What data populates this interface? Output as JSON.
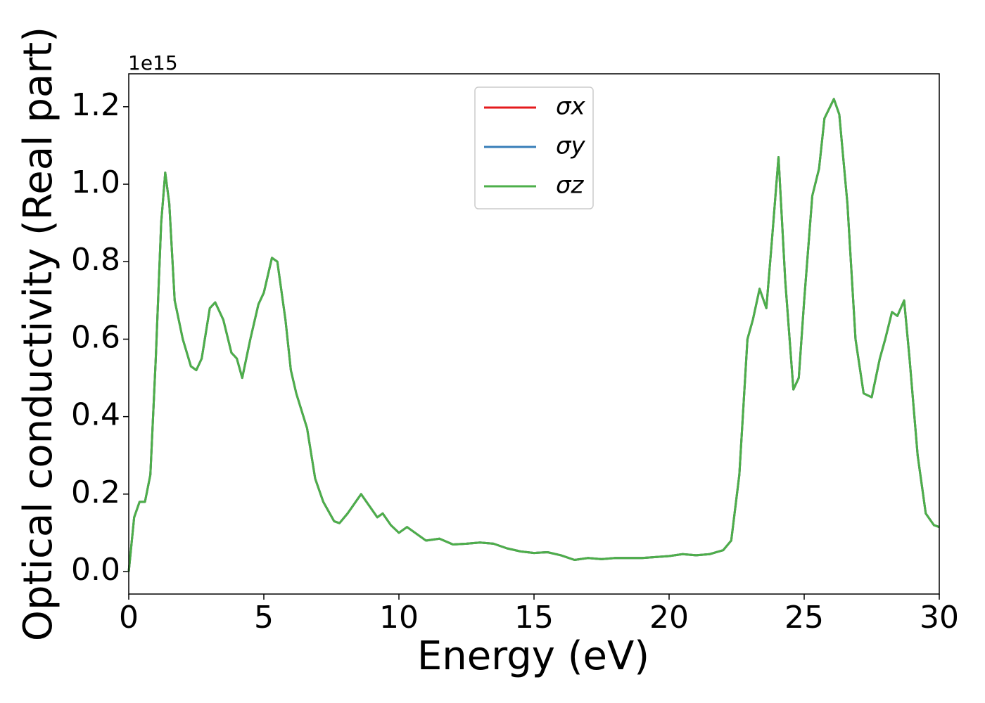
{
  "chart_data": {
    "type": "line",
    "xlabel": "Energy (eV)",
    "ylabel": "Optical conductivity (Real part)",
    "y_offset_label": "1e15",
    "x": [
      0,
      0.2,
      0.4,
      0.6,
      0.8,
      1.0,
      1.2,
      1.35,
      1.5,
      1.7,
      2.0,
      2.3,
      2.5,
      2.7,
      3.0,
      3.2,
      3.5,
      3.8,
      4.0,
      4.2,
      4.5,
      4.8,
      5.0,
      5.3,
      5.5,
      5.8,
      6.0,
      6.2,
      6.6,
      6.9,
      7.2,
      7.6,
      7.8,
      8.1,
      8.3,
      8.6,
      8.9,
      9.2,
      9.4,
      9.7,
      10.0,
      10.3,
      10.6,
      11.0,
      11.5,
      12.0,
      12.5,
      13.0,
      13.5,
      14.0,
      14.5,
      15.0,
      15.5,
      16.0,
      16.5,
      17.0,
      17.5,
      18.0,
      19.0,
      20.0,
      20.5,
      21.0,
      21.5,
      22.0,
      22.3,
      22.6,
      22.9,
      23.1,
      23.35,
      23.6,
      23.8,
      24.05,
      24.3,
      24.6,
      24.8,
      25.0,
      25.3,
      25.55,
      25.75,
      26.1,
      26.3,
      26.6,
      26.9,
      27.2,
      27.5,
      27.8,
      28.0,
      28.25,
      28.45,
      28.7,
      28.9,
      29.2,
      29.5,
      29.8,
      30.0
    ],
    "series": [
      {
        "name": "σx",
        "color": "#e41a1c",
        "values": [
          0.0,
          0.14,
          0.18,
          0.18,
          0.25,
          0.55,
          0.9,
          1.03,
          0.95,
          0.7,
          0.6,
          0.53,
          0.52,
          0.55,
          0.68,
          0.695,
          0.65,
          0.565,
          0.55,
          0.5,
          0.6,
          0.69,
          0.72,
          0.81,
          0.8,
          0.65,
          0.52,
          0.46,
          0.37,
          0.24,
          0.18,
          0.13,
          0.125,
          0.15,
          0.17,
          0.2,
          0.17,
          0.14,
          0.15,
          0.12,
          0.1,
          0.115,
          0.1,
          0.08,
          0.085,
          0.07,
          0.072,
          0.075,
          0.072,
          0.06,
          0.052,
          0.048,
          0.05,
          0.042,
          0.03,
          0.035,
          0.032,
          0.035,
          0.035,
          0.04,
          0.045,
          0.042,
          0.045,
          0.055,
          0.08,
          0.25,
          0.6,
          0.65,
          0.73,
          0.68,
          0.85,
          1.07,
          0.75,
          0.47,
          0.5,
          0.7,
          0.97,
          1.04,
          1.17,
          1.22,
          1.18,
          0.95,
          0.6,
          0.46,
          0.45,
          0.55,
          0.6,
          0.67,
          0.66,
          0.7,
          0.55,
          0.3,
          0.15,
          0.12,
          0.115
        ]
      },
      {
        "name": "σy",
        "color": "#377eb8",
        "values": [
          0.0,
          0.14,
          0.18,
          0.18,
          0.25,
          0.55,
          0.9,
          1.03,
          0.95,
          0.7,
          0.6,
          0.53,
          0.52,
          0.55,
          0.68,
          0.695,
          0.65,
          0.565,
          0.55,
          0.5,
          0.6,
          0.69,
          0.72,
          0.81,
          0.8,
          0.65,
          0.52,
          0.46,
          0.37,
          0.24,
          0.18,
          0.13,
          0.125,
          0.15,
          0.17,
          0.2,
          0.17,
          0.14,
          0.15,
          0.12,
          0.1,
          0.115,
          0.1,
          0.08,
          0.085,
          0.07,
          0.072,
          0.075,
          0.072,
          0.06,
          0.052,
          0.048,
          0.05,
          0.042,
          0.03,
          0.035,
          0.032,
          0.035,
          0.035,
          0.04,
          0.045,
          0.042,
          0.045,
          0.055,
          0.08,
          0.25,
          0.6,
          0.65,
          0.73,
          0.68,
          0.85,
          1.07,
          0.75,
          0.47,
          0.5,
          0.7,
          0.97,
          1.04,
          1.17,
          1.22,
          1.18,
          0.95,
          0.6,
          0.46,
          0.45,
          0.55,
          0.6,
          0.67,
          0.66,
          0.7,
          0.55,
          0.3,
          0.15,
          0.12,
          0.115
        ]
      },
      {
        "name": "σz",
        "color": "#4daf4a",
        "values": [
          0.0,
          0.14,
          0.18,
          0.18,
          0.25,
          0.55,
          0.9,
          1.03,
          0.95,
          0.7,
          0.6,
          0.53,
          0.52,
          0.55,
          0.68,
          0.695,
          0.65,
          0.565,
          0.55,
          0.5,
          0.6,
          0.69,
          0.72,
          0.81,
          0.8,
          0.65,
          0.52,
          0.46,
          0.37,
          0.24,
          0.18,
          0.13,
          0.125,
          0.15,
          0.17,
          0.2,
          0.17,
          0.14,
          0.15,
          0.12,
          0.1,
          0.115,
          0.1,
          0.08,
          0.085,
          0.07,
          0.072,
          0.075,
          0.072,
          0.06,
          0.052,
          0.048,
          0.05,
          0.042,
          0.03,
          0.035,
          0.032,
          0.035,
          0.035,
          0.04,
          0.045,
          0.042,
          0.045,
          0.055,
          0.08,
          0.25,
          0.6,
          0.65,
          0.73,
          0.68,
          0.85,
          1.07,
          0.75,
          0.47,
          0.5,
          0.7,
          0.97,
          1.04,
          1.17,
          1.22,
          1.18,
          0.95,
          0.6,
          0.46,
          0.45,
          0.55,
          0.6,
          0.67,
          0.66,
          0.7,
          0.55,
          0.3,
          0.15,
          0.12,
          0.115
        ]
      }
    ],
    "xlim": [
      0,
      30
    ],
    "xticks": [
      0,
      5,
      10,
      15,
      20,
      25,
      30
    ],
    "ylim": [
      -0.058,
      1.285
    ],
    "yticks": [
      {
        "value": 0,
        "label": "0.0"
      },
      0.2,
      0.4,
      0.6,
      0.8,
      {
        "value": 1,
        "label": "1.0"
      },
      1.2
    ],
    "legend": "upper center",
    "grid": false
  }
}
